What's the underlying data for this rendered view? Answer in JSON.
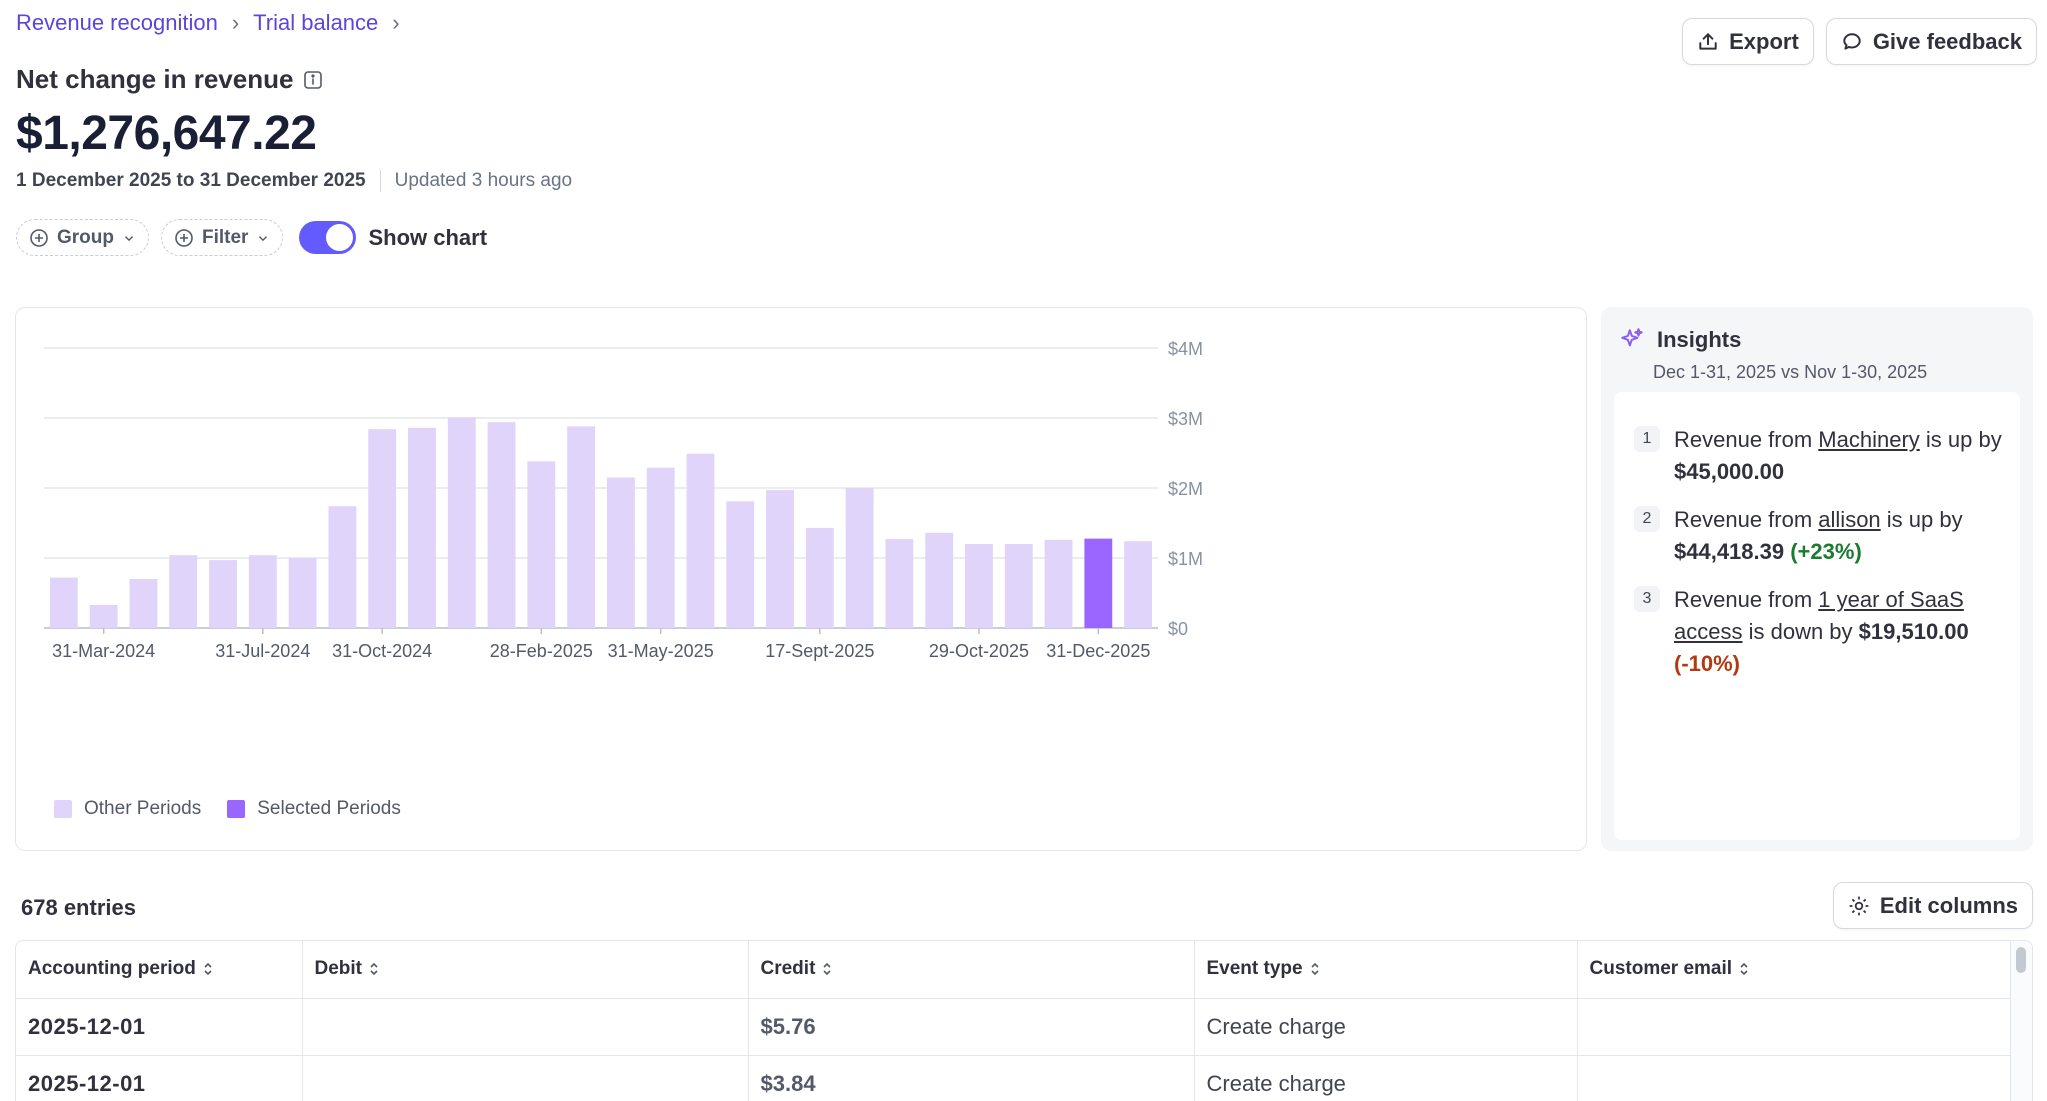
{
  "breadcrumb": {
    "items": [
      "Revenue recognition",
      "Trial balance"
    ]
  },
  "actions": {
    "export_label": "Export",
    "feedback_label": "Give feedback"
  },
  "summary": {
    "title": "Net change in revenue",
    "amount": "$1,276,647.22",
    "range": "1 December 2025 to 31 December 2025",
    "updated": "Updated 3 hours ago"
  },
  "controls": {
    "group_label": "Group",
    "filter_label": "Filter",
    "toggle_label": "Show chart",
    "toggle_on": true
  },
  "chart_data": {
    "type": "bar",
    "ylim": [
      0,
      4000000
    ],
    "y_ticks": [
      "$0",
      "$1M",
      "$2M",
      "$3M",
      "$4M"
    ],
    "x_tick_labels": [
      "31-Mar-2024",
      "31-Jul-2024",
      "31-Oct-2024",
      "28-Feb-2025",
      "31-May-2025",
      "17-Sept-2025",
      "29-Oct-2025",
      "31-Dec-2025"
    ],
    "x_tick_bar_index": [
      1,
      5,
      8,
      12,
      15,
      19,
      23,
      26
    ],
    "values": [
      720000,
      330000,
      700000,
      1040000,
      970000,
      1040000,
      1000000,
      1740000,
      2840000,
      2860000,
      3010000,
      2940000,
      2380000,
      2880000,
      2150000,
      2290000,
      2490000,
      1810000,
      1970000,
      1430000,
      2000000,
      1270000,
      1360000,
      1200000,
      1200000,
      1260000,
      1276647,
      1240000
    ],
    "selected_index": 26,
    "legend": [
      "Other Periods",
      "Selected Periods"
    ],
    "colors": {
      "other": "#e0d4fa",
      "selected": "#9966ff",
      "grid": "#e3e6eb",
      "axis": "#b9bec9"
    }
  },
  "insights": {
    "title": "Insights",
    "subtitle": "Dec 1-31, 2025 vs Nov 1-30, 2025",
    "items": [
      {
        "num": "1",
        "pre": "Revenue from ",
        "link": "Machinery",
        "mid": " is up by ",
        "amount": "$45,000.00",
        "change": ""
      },
      {
        "num": "2",
        "pre": "Revenue from ",
        "link": "allison",
        "mid": " is up by ",
        "amount": "$44,418.39",
        "change": "(+23%)"
      },
      {
        "num": "3",
        "pre": "Revenue from ",
        "link": "1 year of SaaS access",
        "mid": " is down by ",
        "amount": "$19,510.00",
        "change": "(-10%)"
      }
    ]
  },
  "table": {
    "entries_label": "678 entries",
    "edit_columns_label": "Edit columns",
    "columns": [
      "Accounting period",
      "Debit",
      "Credit",
      "Event type",
      "Customer email"
    ],
    "rows": [
      [
        "2025-12-01",
        "",
        "$5.76",
        "Create charge",
        ""
      ],
      [
        "2025-12-01",
        "",
        "$3.84",
        "Create charge",
        ""
      ]
    ]
  }
}
